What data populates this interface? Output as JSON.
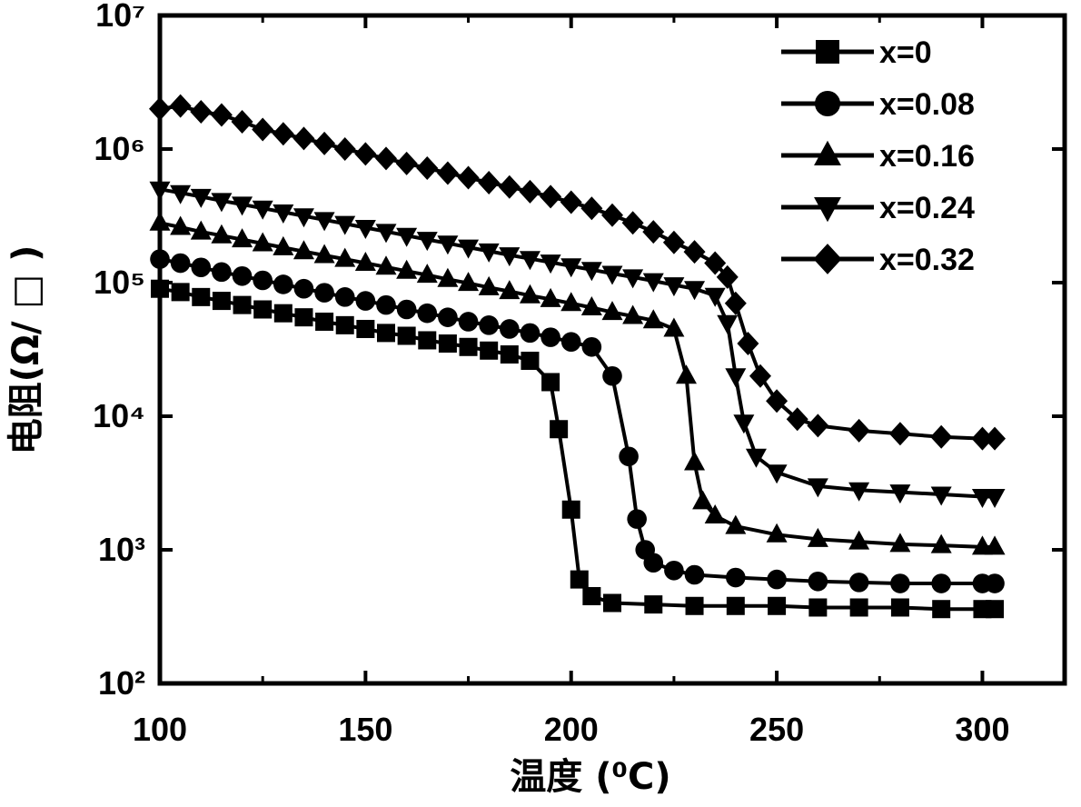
{
  "chart_data": {
    "type": "scatter",
    "title": "",
    "xlabel": "温度 (⁰C)",
    "ylabel": "电阻(Ω/ □ )",
    "xlim": [
      100,
      320
    ],
    "ylim": [
      100,
      10000000
    ],
    "yscale": "log",
    "grid": false,
    "legend_position": "top-right",
    "x_ticks": [
      "100",
      "150",
      "200",
      "250",
      "300"
    ],
    "y_ticks": [
      "10²",
      "10³",
      "10⁴",
      "10⁵",
      "10⁶",
      "10⁷"
    ],
    "series": [
      {
        "name": "x=0",
        "marker": "square",
        "x": [
          100,
          105,
          110,
          115,
          120,
          125,
          130,
          135,
          140,
          145,
          150,
          155,
          160,
          165,
          170,
          175,
          180,
          185,
          190,
          195,
          197,
          200,
          202,
          205,
          210,
          220,
          230,
          240,
          250,
          260,
          270,
          280,
          290,
          300,
          303
        ],
        "y": [
          90000,
          85000,
          78000,
          73000,
          68000,
          63000,
          59000,
          55000,
          51000,
          48000,
          45000,
          42000,
          40000,
          37000,
          35000,
          33000,
          31000,
          29000,
          26000,
          18000,
          8000,
          2000,
          600,
          450,
          400,
          390,
          380,
          380,
          380,
          370,
          370,
          370,
          360,
          360,
          360
        ]
      },
      {
        "name": "x=0.08",
        "marker": "circle",
        "x": [
          100,
          105,
          110,
          115,
          120,
          125,
          130,
          135,
          140,
          145,
          150,
          155,
          160,
          165,
          170,
          175,
          180,
          185,
          190,
          195,
          200,
          205,
          210,
          214,
          216,
          218,
          220,
          225,
          230,
          240,
          250,
          260,
          270,
          280,
          290,
          300,
          303
        ],
        "y": [
          150000,
          140000,
          130000,
          120000,
          112000,
          104000,
          97000,
          90000,
          84000,
          78000,
          73000,
          68000,
          63000,
          59000,
          55000,
          51000,
          48000,
          45000,
          42000,
          39000,
          36000,
          33000,
          20000,
          5000,
          1700,
          1000,
          800,
          700,
          650,
          620,
          600,
          580,
          570,
          560,
          560,
          560,
          560
        ]
      },
      {
        "name": "x=0.16",
        "marker": "triangle-up",
        "x": [
          100,
          105,
          110,
          115,
          120,
          125,
          130,
          135,
          140,
          145,
          150,
          155,
          160,
          165,
          170,
          175,
          180,
          185,
          190,
          195,
          200,
          205,
          210,
          215,
          220,
          225,
          228,
          230,
          232,
          235,
          240,
          250,
          260,
          270,
          280,
          290,
          300,
          303
        ],
        "y": [
          280000,
          260000,
          240000,
          225000,
          210000,
          196000,
          183000,
          171000,
          160000,
          150000,
          140000,
          131000,
          122000,
          114000,
          106000,
          99000,
          92000,
          86000,
          80000,
          75000,
          70000,
          65000,
          60000,
          56000,
          52000,
          45000,
          20000,
          4500,
          2300,
          1800,
          1500,
          1300,
          1200,
          1150,
          1100,
          1080,
          1050,
          1050
        ]
      },
      {
        "name": "x=0.24",
        "marker": "triangle-down",
        "x": [
          100,
          105,
          110,
          115,
          120,
          125,
          130,
          135,
          140,
          145,
          150,
          155,
          160,
          165,
          170,
          175,
          180,
          185,
          190,
          195,
          200,
          205,
          210,
          215,
          220,
          225,
          230,
          235,
          238,
          240,
          242,
          245,
          250,
          260,
          270,
          280,
          290,
          300,
          303
        ],
        "y": [
          500000,
          470000,
          440000,
          410000,
          385000,
          360000,
          337000,
          315000,
          295000,
          276000,
          258000,
          241000,
          225000,
          210000,
          197000,
          184000,
          172000,
          161000,
          151000,
          142000,
          133000,
          125000,
          117000,
          110000,
          103000,
          96000,
          90000,
          80000,
          50000,
          20000,
          9000,
          5000,
          3800,
          3000,
          2800,
          2700,
          2600,
          2500,
          2500
        ]
      },
      {
        "name": "x=0.32",
        "marker": "diamond",
        "x": [
          100,
          105,
          110,
          115,
          120,
          125,
          130,
          135,
          140,
          145,
          150,
          155,
          160,
          165,
          170,
          175,
          180,
          185,
          190,
          195,
          200,
          205,
          210,
          215,
          220,
          225,
          230,
          235,
          238,
          240,
          243,
          246,
          250,
          255,
          260,
          270,
          280,
          290,
          300,
          303
        ],
        "y": [
          2000000,
          2100000,
          1900000,
          1800000,
          1600000,
          1400000,
          1300000,
          1200000,
          1100000,
          1000000,
          920000,
          850000,
          780000,
          720000,
          660000,
          610000,
          560000,
          520000,
          480000,
          440000,
          400000,
          360000,
          320000,
          280000,
          240000,
          200000,
          170000,
          140000,
          110000,
          70000,
          35000,
          20000,
          13000,
          9500,
          8500,
          7800,
          7400,
          7000,
          6800,
          6800
        ]
      }
    ]
  }
}
